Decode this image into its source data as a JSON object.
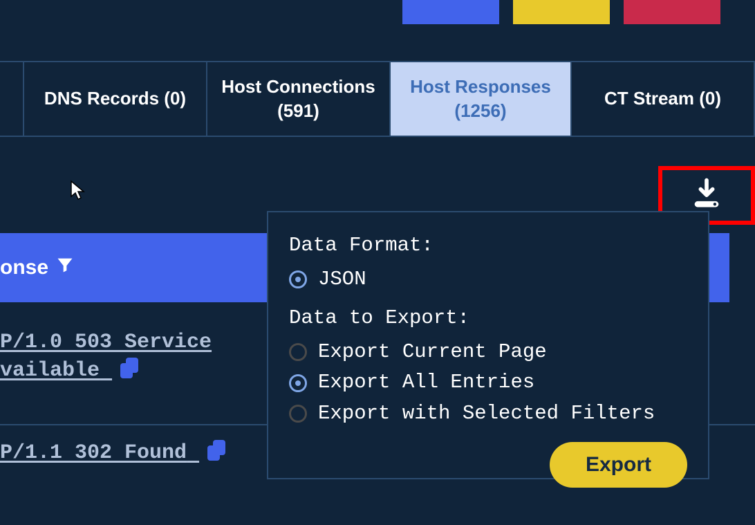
{
  "colors": {
    "page_bg": "#10243a",
    "tab_border": "#2b4b6f",
    "tab_active_bg": "#c5d5f5",
    "tab_active_text": "#3d6db6",
    "blue_header_bg": "#4263eb",
    "row_border": "#2b4b6f",
    "link_text": "#b0c0d8",
    "copy_icon": "#4263eb",
    "download_icon": "#ffffff",
    "panel_bg": "#10243a",
    "panel_border": "#2b4b6f",
    "radio_border": "#4a4a4a",
    "radio_fill": "#7fa6e6",
    "export_btn_bg": "#e8c92c",
    "export_btn_text": "#152a42",
    "top_btn_blue": "#4263eb",
    "top_btn_yellow": "#e8c92c",
    "top_btn_red": "#c92a4b"
  },
  "top_buttons": {
    "blue": "",
    "yellow": "",
    "red": ""
  },
  "tabs": [
    {
      "label": "DNS Records (0)",
      "active": false
    },
    {
      "label_line1": "Host Connections",
      "label_line2": "(591)",
      "active": false
    },
    {
      "label_line1": "Host Responses",
      "label_line2": "(1256)",
      "active": true
    },
    {
      "label": "CT Stream (0)",
      "active": false
    }
  ],
  "header": {
    "left_partial_label": "onse"
  },
  "rows": [
    {
      "status_line1": "P/1.0 503 Service",
      "status_line2": "vailable"
    },
    {
      "status_line1": "P/1.1 302 Found"
    }
  ],
  "export_panel": {
    "format_label": "Data Format:",
    "format_option": "JSON",
    "scope_label": "Data to Export:",
    "scope_options": [
      {
        "label": "Export Current Page",
        "checked": false
      },
      {
        "label": "Export All Entries",
        "checked": true
      },
      {
        "label": "Export with Selected Filters",
        "checked": false
      }
    ],
    "export_button_label": "Export"
  }
}
